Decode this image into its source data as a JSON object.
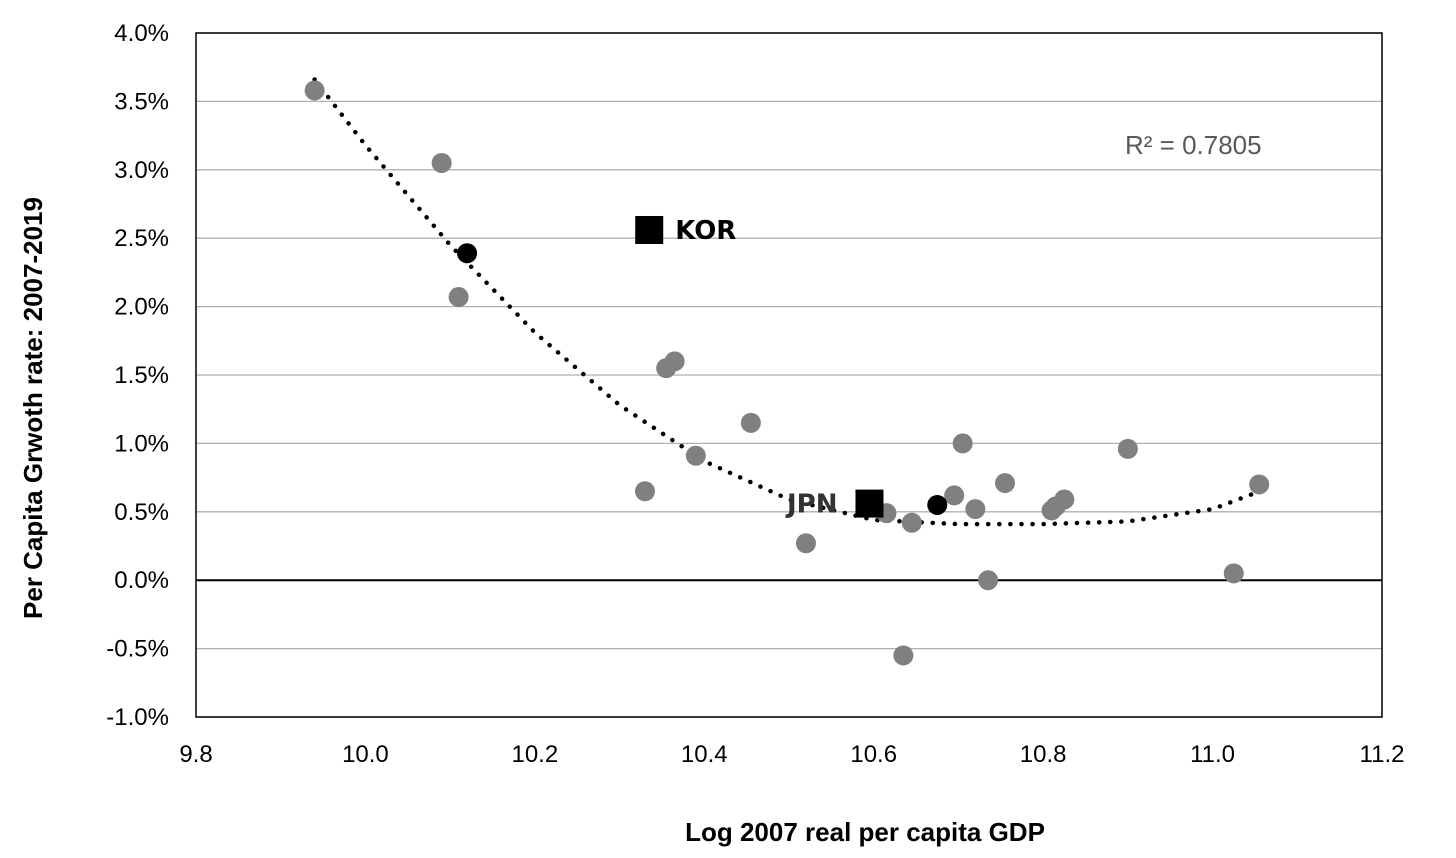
{
  "chart_data": {
    "type": "scatter",
    "title": "",
    "xlabel": "Log 2007 real per capita GDP",
    "ylabel": "Per Capita Grwoth rate: 2007-2019",
    "xlim": [
      9.8,
      11.2
    ],
    "ylim": [
      -0.01,
      0.04
    ],
    "xticks": [
      9.8,
      10.0,
      10.2,
      10.4,
      10.6,
      10.8,
      11.0,
      11.2
    ],
    "yticks": [
      -0.01,
      -0.005,
      0.0,
      0.005,
      0.01,
      0.015,
      0.02,
      0.025,
      0.03,
      0.035,
      0.04
    ],
    "xtick_labels": [
      "9.8",
      "10.0",
      "10.2",
      "10.4",
      "10.6",
      "10.8",
      "11.0",
      "11.2"
    ],
    "ytick_labels": [
      "-1.0%",
      "-0.5%",
      "0.0%",
      "0.5%",
      "1.0%",
      "1.5%",
      "2.0%",
      "2.5%",
      "3.0%",
      "3.5%",
      "4.0%"
    ],
    "grid": "horizontal",
    "points": [
      {
        "x": 9.94,
        "y": 0.0358
      },
      {
        "x": 10.09,
        "y": 0.0305
      },
      {
        "x": 10.11,
        "y": 0.0207
      },
      {
        "x": 10.33,
        "y": 0.0065
      },
      {
        "x": 10.355,
        "y": 0.0155
      },
      {
        "x": 10.365,
        "y": 0.016
      },
      {
        "x": 10.39,
        "y": 0.0091
      },
      {
        "x": 10.455,
        "y": 0.0115
      },
      {
        "x": 10.52,
        "y": 0.0027
      },
      {
        "x": 10.615,
        "y": 0.0049
      },
      {
        "x": 10.635,
        "y": -0.0055
      },
      {
        "x": 10.645,
        "y": 0.0042
      },
      {
        "x": 10.695,
        "y": 0.0062
      },
      {
        "x": 10.705,
        "y": 0.01
      },
      {
        "x": 10.72,
        "y": 0.0052
      },
      {
        "x": 10.735,
        "y": 0.0
      },
      {
        "x": 10.755,
        "y": 0.0071
      },
      {
        "x": 10.81,
        "y": 0.0051
      },
      {
        "x": 10.815,
        "y": 0.0054
      },
      {
        "x": 10.825,
        "y": 0.0059
      },
      {
        "x": 10.9,
        "y": 0.0096
      },
      {
        "x": 11.025,
        "y": 0.0005
      },
      {
        "x": 11.055,
        "y": 0.007
      }
    ],
    "highlight_points": [
      {
        "x": 10.12,
        "y": 0.0239
      },
      {
        "x": 10.675,
        "y": 0.0055
      }
    ],
    "labeled_points": [
      {
        "label": "KOR",
        "x": 10.335,
        "y": 0.0256
      },
      {
        "label": "JPN",
        "x": 10.595,
        "y": 0.0056
      }
    ],
    "trendline": {
      "type": "polynomial-2",
      "x": [
        9.94,
        10.0,
        10.1,
        10.2,
        10.3,
        10.4,
        10.5,
        10.6,
        10.7,
        10.8,
        10.9,
        11.0,
        11.06
      ],
      "y": [
        0.0366,
        0.0318,
        0.0245,
        0.0181,
        0.0128,
        0.0087,
        0.0059,
        0.0044,
        0.0041,
        0.0041,
        0.0043,
        0.0052,
        0.0066
      ]
    },
    "annotation": "R² = 0.7805",
    "colors": {
      "points": "#808080",
      "highlight": "#000000",
      "labeled": "#000000",
      "trendline": "#000000",
      "grid": "#b0b0b0",
      "annotation": "#595959"
    }
  }
}
